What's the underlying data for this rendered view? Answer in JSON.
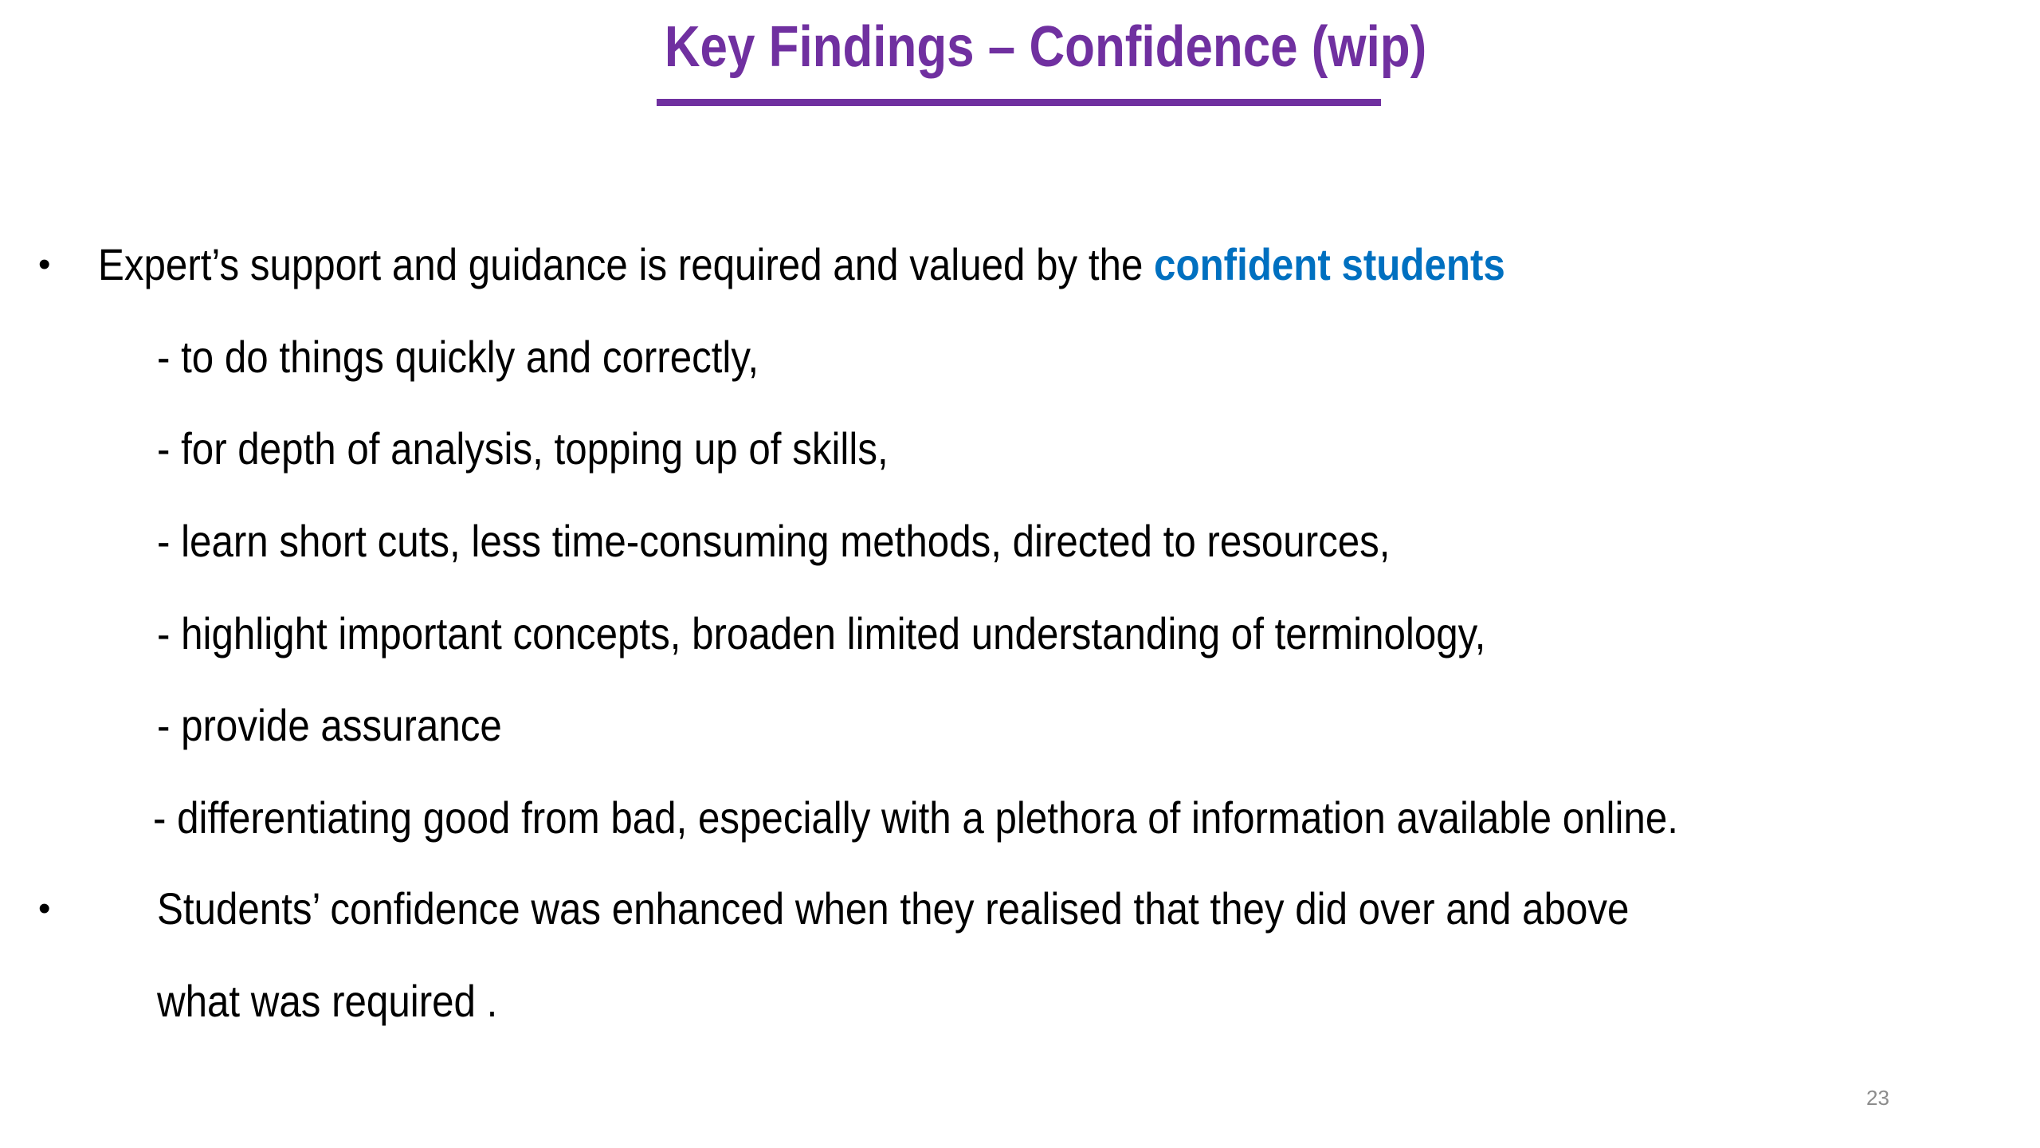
{
  "slide": {
    "title": "Key Findings – Confidence (wip)",
    "bullets": [
      {
        "text": "Expert’s support and guidance is required and valued by the ",
        "highlight": "confident students",
        "sub_items": [
          "- to do things quickly and correctly,",
          "- for depth of analysis, topping up of skills,",
          "- learn short cuts, less time-consuming methods, directed to resources,",
          "- highlight important concepts, broaden limited understanding of terminology,",
          "- provide assurance",
          "- differentiating good from bad, especially with a plethora of information available online."
        ]
      },
      {
        "line1": "Students’ confidence was enhanced when they realised that they did over and above",
        "line2": "what was required ."
      }
    ],
    "page_number": "23"
  },
  "colors": {
    "title": "#7030a0",
    "highlight": "#0070c0",
    "page_number": "#8c8c8c"
  }
}
